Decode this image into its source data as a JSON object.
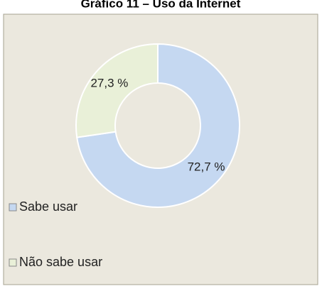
{
  "chart_data": {
    "type": "donut",
    "title": "Gráfico 11 – Uso da Internet",
    "categories": [
      "Sabe usar",
      "Não sabe usar"
    ],
    "values": [
      72.7,
      27.3
    ],
    "value_labels": [
      "72,7 %",
      "27,3 %"
    ],
    "colors": [
      "#c5d8f1",
      "#e9f0d8"
    ]
  }
}
